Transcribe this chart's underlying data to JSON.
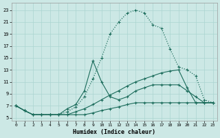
{
  "xlabel": "Humidex (Indice chaleur)",
  "bg_color": "#cce8e5",
  "line_color": "#1a6b5a",
  "grid_color": "#aad4d0",
  "xlim": [
    -0.5,
    23.5
  ],
  "ylim": [
    4.5,
    24.2
  ],
  "xticks": [
    0,
    1,
    2,
    3,
    4,
    5,
    6,
    7,
    8,
    9,
    10,
    11,
    12,
    13,
    14,
    15,
    16,
    17,
    18,
    19,
    20,
    21,
    22,
    23
  ],
  "yticks": [
    5,
    7,
    9,
    11,
    13,
    15,
    17,
    19,
    21,
    23
  ],
  "lines": [
    {
      "x": [
        0,
        1,
        2,
        3,
        4,
        5,
        6,
        7,
        8,
        9,
        10,
        11,
        12,
        13,
        14,
        15,
        16,
        17,
        18,
        19,
        20,
        21,
        22,
        23
      ],
      "y": [
        7,
        6.2,
        5.5,
        5.5,
        5.5,
        5.5,
        5.5,
        5.5,
        5.5,
        5.8,
        6.2,
        6.5,
        6.8,
        7.2,
        7.5,
        7.5,
        7.5,
        7.5,
        7.5,
        7.5,
        7.5,
        7.5,
        7.5,
        7.5
      ],
      "style": "solid",
      "lw": 0.8
    },
    {
      "x": [
        0,
        1,
        2,
        3,
        4,
        5,
        6,
        7,
        8,
        9,
        10,
        11,
        12,
        13,
        14,
        15,
        16,
        17,
        18,
        19,
        20,
        21,
        22,
        23
      ],
      "y": [
        7,
        6.2,
        5.5,
        5.5,
        5.5,
        5.5,
        5.5,
        6.0,
        6.5,
        7.2,
        8.0,
        8.8,
        9.5,
        10.3,
        11.0,
        11.5,
        12.0,
        12.5,
        12.8,
        13.0,
        10.0,
        7.5,
        7.5,
        7.5
      ],
      "style": "solid",
      "lw": 0.8
    },
    {
      "x": [
        0,
        1,
        2,
        3,
        4,
        5,
        6,
        7,
        8,
        9,
        10,
        11,
        12,
        13,
        14,
        15,
        16,
        17,
        18,
        19,
        20,
        21,
        22,
        23
      ],
      "y": [
        7,
        6.2,
        5.5,
        5.5,
        5.5,
        5.5,
        6.5,
        7.2,
        9.5,
        14.5,
        11.0,
        8.5,
        8.0,
        8.5,
        9.5,
        10.0,
        10.5,
        10.5,
        10.5,
        10.5,
        9.5,
        8.5,
        7.5,
        7.5
      ],
      "style": "solid",
      "lw": 0.8
    },
    {
      "x": [
        0,
        1,
        2,
        3,
        4,
        5,
        6,
        7,
        8,
        9,
        10,
        11,
        12,
        13,
        14,
        15,
        16,
        17,
        18,
        19,
        20,
        21,
        22,
        23
      ],
      "y": [
        7,
        6.2,
        5.5,
        5.5,
        5.5,
        5.5,
        6.0,
        6.8,
        8.5,
        11.5,
        15.0,
        19.0,
        21.0,
        22.5,
        23.0,
        22.5,
        20.5,
        20.0,
        16.5,
        13.5,
        13.0,
        12.0,
        8.0,
        7.5
      ],
      "style": "dotted",
      "lw": 0.9
    }
  ]
}
